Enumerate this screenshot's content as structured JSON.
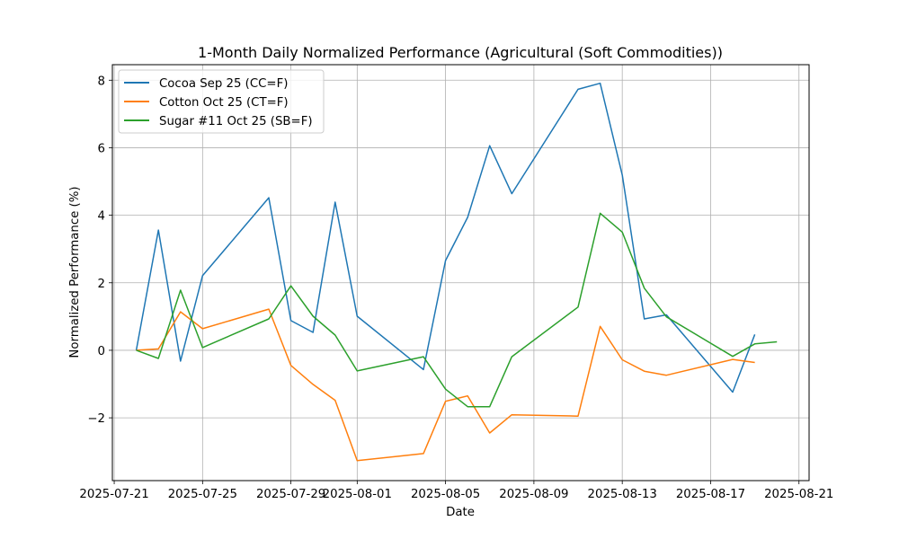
{
  "chart_data": {
    "type": "line",
    "title": "1-Month Daily Normalized Performance (Agricultural (Soft Commodities))",
    "xlabel": "Date",
    "ylabel": "Normalized Performance (%)",
    "x": [
      "2025-07-22",
      "2025-07-23",
      "2025-07-24",
      "2025-07-25",
      "2025-07-28",
      "2025-07-29",
      "2025-07-30",
      "2025-07-31",
      "2025-08-01",
      "2025-08-04",
      "2025-08-05",
      "2025-08-06",
      "2025-08-07",
      "2025-08-08",
      "2025-08-11",
      "2025-08-12",
      "2025-08-13",
      "2025-08-14",
      "2025-08-15",
      "2025-08-18",
      "2025-08-19",
      "2025-08-20"
    ],
    "series": [
      {
        "name": "Cocoa Sep 25 (CC=F)",
        "color": "#1f77b4",
        "values": [
          0,
          3.56,
          -0.32,
          2.21,
          4.52,
          0.88,
          0.53,
          4.39,
          1.01,
          -0.57,
          2.66,
          3.94,
          6.06,
          4.64,
          7.73,
          7.91,
          5.19,
          0.93,
          1.05,
          -1.24,
          0.47,
          null
        ]
      },
      {
        "name": "Cotton Oct 25 (CT=F)",
        "color": "#ff7f0e",
        "values": [
          0,
          0.04,
          1.14,
          0.64,
          1.22,
          -0.45,
          -1.01,
          -1.48,
          -3.27,
          -3.06,
          -1.51,
          -1.35,
          -2.45,
          -1.91,
          -1.95,
          0.71,
          -0.28,
          -0.62,
          -0.74,
          -0.27,
          -0.36,
          null
        ]
      },
      {
        "name": "Sugar #11 Oct 25 (SB=F)",
        "color": "#2ca02c",
        "values": [
          0,
          -0.24,
          1.78,
          0.08,
          0.93,
          1.91,
          1.01,
          0.45,
          -0.61,
          -0.19,
          -1.15,
          -1.67,
          -1.67,
          -0.19,
          1.28,
          4.06,
          3.5,
          1.84,
          0.99,
          -0.18,
          0.19,
          0.25
        ]
      }
    ],
    "xticks": [
      "2025-07-21",
      "2025-07-25",
      "2025-07-29",
      "2025-08-01",
      "2025-08-05",
      "2025-08-09",
      "2025-08-13",
      "2025-08-17",
      "2025-08-21"
    ],
    "yticks": [
      -2,
      0,
      2,
      4,
      6,
      8
    ],
    "xlim": [
      "2025-07-20T22:00",
      "2025-08-21T11:00"
    ],
    "ylim": [
      -3.86,
      8.46
    ],
    "grid": true,
    "legend_position": "top-left"
  }
}
